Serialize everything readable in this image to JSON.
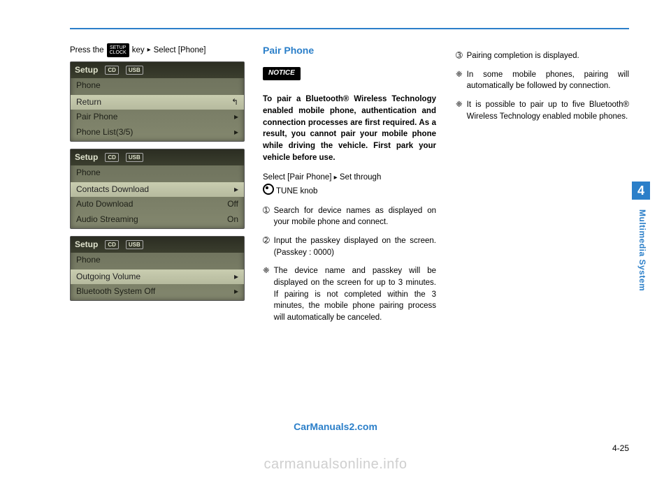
{
  "rule_color": "#2b7fc9",
  "col1": {
    "press_prefix": "Press the",
    "key_line1": "SETUP",
    "key_line2": "CLOCK",
    "press_suffix": "key",
    "select_phone": "Select [Phone]",
    "lcd": {
      "setup": "Setup",
      "badge1": "CD",
      "badge2": "USB",
      "phone": "Phone",
      "screens": [
        [
          {
            "label": "Return",
            "value": "↰",
            "sel": true
          },
          {
            "label": "Pair Phone",
            "value": "▸",
            "sel": false
          },
          {
            "label": "Phone List(3/5)",
            "value": "▸",
            "sel": false
          }
        ],
        [
          {
            "label": "Contacts Download",
            "value": "▸",
            "sel": true
          },
          {
            "label": "Auto Download",
            "value": "Off",
            "sel": false
          },
          {
            "label": "Audio Streaming",
            "value": "On",
            "sel": false
          }
        ],
        [
          {
            "label": "Outgoing Volume",
            "value": "▸",
            "sel": true
          },
          {
            "label": "Bluetooth System Off",
            "value": "▸",
            "sel": false
          }
        ]
      ]
    }
  },
  "col2": {
    "heading": "Pair Phone",
    "notice": "NOTICE",
    "notice_body": "To pair a Bluetooth® Wireless Technology enabled mobile phone, authentication and connection processes are first required. As a result, you cannot pair your mobile phone while driving the vehicle. First park your vehicle before use.",
    "select_pair": "Select [Pair Phone]",
    "set_through": "Set through",
    "tune_knob": "TUNE knob",
    "items": [
      {
        "mk": "➀",
        "text": "Search for device names as displayed on your mobile phone and connect."
      },
      {
        "mk": "➁",
        "text": "Input the passkey displayed on the screen. (Passkey : 0000)"
      },
      {
        "mk": "❈",
        "text": "The device name and passkey will be displayed on the screen for up to 3 minutes. If pairing is not completed within the 3 minutes, the mobile phone pairing process will automatically be canceled."
      }
    ]
  },
  "col3": {
    "items": [
      {
        "mk": "➂",
        "text": "Pairing completion is displayed."
      },
      {
        "mk": "❈",
        "text": "In some mobile phones, pairing will automatically be followed by connection."
      },
      {
        "mk": "❈",
        "text": "It is possible to pair up to five Bluetooth® Wireless Technology enabled mobile phones."
      }
    ]
  },
  "side": {
    "num": "4",
    "label": "Multimedia System"
  },
  "page_num": "4-25",
  "watermark1": "CarManuals2.com",
  "watermark2": "carmanualsonline.info"
}
